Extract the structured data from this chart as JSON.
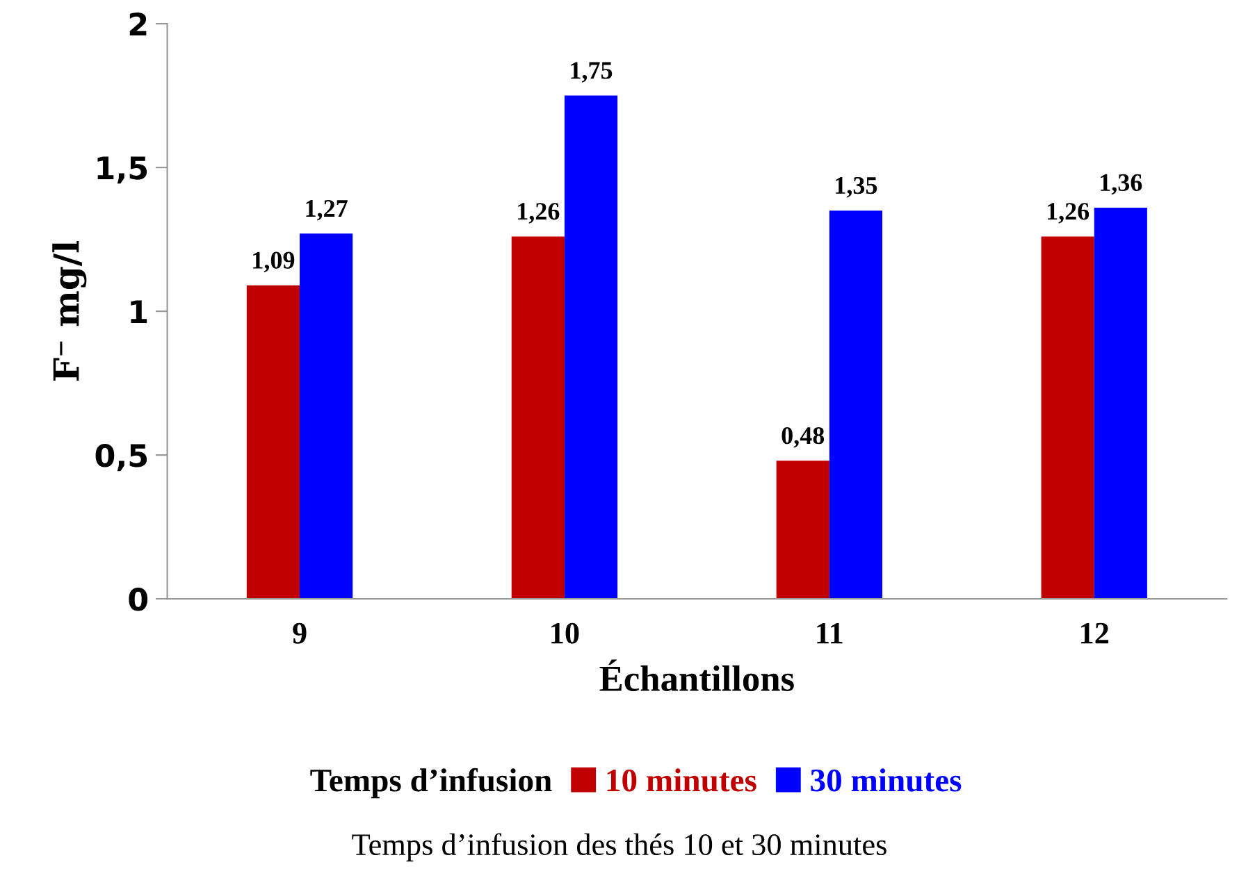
{
  "chart_data": {
    "type": "bar",
    "xlabel": "Échantillons",
    "ylabel": "F⁻ mg/l",
    "legend_title": "Temps d’infusion",
    "categories": [
      "9",
      "10",
      "11",
      "12"
    ],
    "series": [
      {
        "name": "10 minutes",
        "color": "#c00000",
        "values": [
          1.09,
          1.26,
          0.48,
          1.26
        ],
        "value_labels": [
          "1,09",
          "1,26",
          "0,48",
          "1,26"
        ]
      },
      {
        "name": "30 minutes",
        "color": "#0000ff",
        "values": [
          1.27,
          1.75,
          1.35,
          1.36
        ],
        "value_labels": [
          "1,27",
          "1,75",
          "1,35",
          "1,36"
        ]
      }
    ],
    "ylim": [
      0,
      2
    ],
    "yticks": [
      0,
      {
        "value": 0.5,
        "label": "0,5"
      },
      1,
      {
        "value": 1.5,
        "label": "1,5"
      },
      2
    ],
    "legend": "bottom",
    "grid": false,
    "annotations": [
      "Temps d’infusion des thés 10 et 30 minutes"
    ]
  }
}
